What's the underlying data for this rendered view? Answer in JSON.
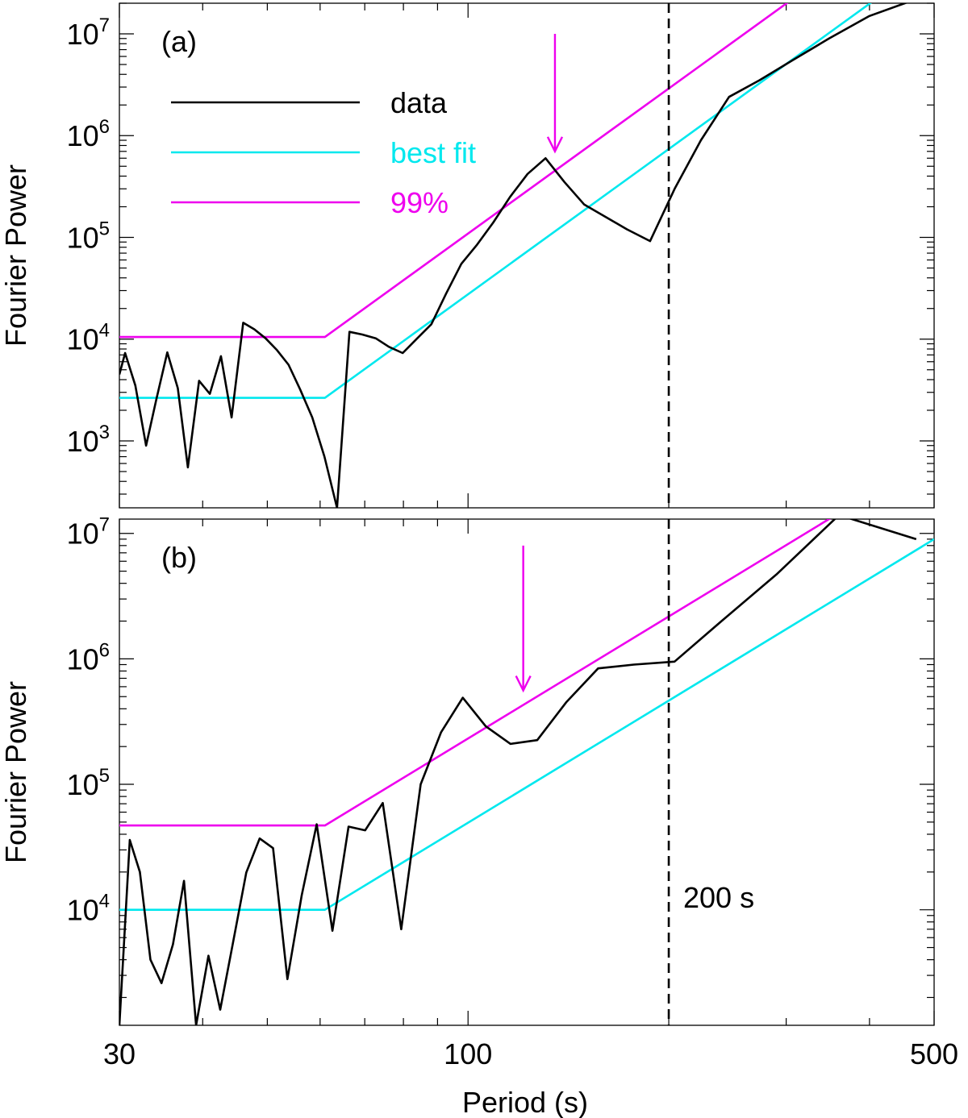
{
  "chart_data": [
    {
      "type": "line",
      "panel_label": "(a)",
      "xscale": "log",
      "yscale": "log",
      "xlim": [
        30,
        500
      ],
      "ylim": [
        220,
        20000000
      ],
      "xlabel": "",
      "ylabel": "Fourier Power",
      "ytick_bases": [
        "10",
        "10",
        "10",
        "10",
        "10"
      ],
      "ytick_exps": [
        "3",
        "4",
        "5",
        "6",
        "7"
      ],
      "ytick_values": [
        1000,
        10000,
        100000,
        1000000,
        10000000
      ],
      "legend": {
        "placement": "top-left",
        "entries": [
          {
            "label": "data",
            "color": "#000000"
          },
          {
            "label": "best fit",
            "color": "#00e8ee"
          },
          {
            "label": "99%",
            "color": "#ee00ee"
          }
        ]
      },
      "series": [
        {
          "name": "data",
          "color": "#000000",
          "x": [
            30.0,
            30.6,
            31.7,
            32.9,
            34.1,
            35.4,
            36.7,
            38.0,
            39.5,
            41.0,
            42.6,
            44.2,
            46.0,
            47.8,
            49.7,
            51.7,
            53.8,
            56.0,
            58.4,
            60.9,
            63.6,
            66.4,
            69.4,
            72.7,
            76.1,
            79.8,
            83.8,
            88.1,
            92.7,
            97.7,
            103.2,
            109.1,
            115.6,
            122.8,
            130.7,
            139.5,
            149.4,
            160.5,
            173.1,
            187.5,
            204.1,
            223.5,
            246.3,
            273.5,
            306.7,
            347.8,
            400.0,
            470.6
          ],
          "y": [
            4500,
            7300,
            3500,
            900,
            2600,
            7400,
            3300,
            550,
            3900,
            2900,
            6800,
            1700,
            14500,
            12500,
            10200,
            7800,
            5600,
            3200,
            1700,
            700,
            220,
            11800,
            11100,
            10200,
            8400,
            7300,
            10100,
            14000,
            28000,
            55000,
            85000,
            140000,
            250000,
            420000,
            600000,
            350000,
            210000,
            160000,
            120000,
            92000,
            300000,
            900000,
            2400000,
            3500000,
            5500000,
            9000000,
            15000000,
            22000000
          ]
        },
        {
          "name": "best fit",
          "color": "#00e8ee",
          "x": [
            30,
            61,
            500
          ],
          "y": [
            2650,
            2650,
            57000000
          ]
        },
        {
          "name": "99%",
          "color": "#ee00ee",
          "x": [
            30,
            61,
            500
          ],
          "y": [
            10500,
            10500,
            223000000
          ]
        }
      ],
      "arrow": {
        "x": 135,
        "y_top": 10000000,
        "y_tip": 700000,
        "color": "#ee00ee"
      },
      "vline": {
        "x": 200,
        "style": "dashed"
      }
    },
    {
      "type": "line",
      "panel_label": "(b)",
      "xscale": "log",
      "yscale": "log",
      "xlim": [
        30,
        500
      ],
      "ylim": [
        1200,
        13000000
      ],
      "xlabel": "Period (s)",
      "ylabel": "Fourier Power",
      "xtick_labels": [
        "30",
        "100",
        "500"
      ],
      "xtick_values": [
        30,
        100,
        500
      ],
      "ytick_bases": [
        "10",
        "10",
        "10",
        "10"
      ],
      "ytick_exps": [
        "4",
        "5",
        "6",
        "7"
      ],
      "ytick_values": [
        10000,
        100000,
        1000000,
        10000000
      ],
      "annotation": "200 s",
      "series": [
        {
          "name": "data",
          "color": "#000000",
          "x": [
            30.0,
            31.1,
            32.2,
            33.4,
            34.7,
            36.1,
            37.5,
            39.1,
            40.8,
            42.5,
            44.4,
            46.5,
            48.7,
            51.0,
            53.6,
            56.3,
            59.3,
            62.6,
            66.2,
            70.1,
            74.5,
            79.4,
            84.9,
            91.1,
            98.2,
            106.3,
            115.8,
            127.0,
            140.3,
            156.7,
            177.3,
            204.0,
            240.0,
            290.0,
            360.0,
            470.0
          ],
          "y": [
            1200,
            36000,
            20000,
            4000,
            2600,
            5300,
            17000,
            1200,
            4300,
            1600,
            5400,
            19800,
            37000,
            31000,
            2800,
            13000,
            48000,
            6800,
            46000,
            43000,
            71000,
            7000,
            100000,
            260000,
            490000,
            290000,
            210000,
            225000,
            450000,
            840000,
            900000,
            950000,
            2000000,
            4700000,
            14000000,
            9000000
          ]
        },
        {
          "name": "best fit",
          "color": "#00e8ee",
          "x": [
            30,
            61,
            500
          ],
          "y": [
            10000,
            10000,
            9000000
          ]
        },
        {
          "name": "99%",
          "color": "#ee00ee",
          "x": [
            30,
            61,
            500
          ],
          "y": [
            47000,
            47000,
            42000000
          ]
        }
      ],
      "arrow": {
        "x": 121,
        "y_top": 8000000,
        "y_tip": 560000,
        "color": "#ee00ee"
      },
      "vline": {
        "x": 200,
        "style": "dashed"
      }
    }
  ]
}
